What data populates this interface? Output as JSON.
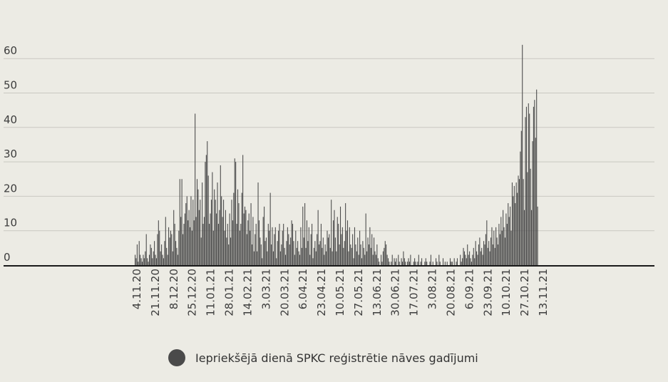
{
  "chart_data": {
    "type": "bar",
    "title": "",
    "xlabel": "",
    "ylabel": "",
    "ylim": [
      0,
      65
    ],
    "yticks": [
      0,
      10,
      20,
      30,
      40,
      50,
      60
    ],
    "grid": true,
    "legend_position": "bottom-center",
    "x_start_label": "4.11.20",
    "x_tick_labels": [
      "4.11.20",
      "21.11.20",
      "8.12.20",
      "25.12.20",
      "11.01.21",
      "28.01.21",
      "14.02.21",
      "3.03.21",
      "20.03.21",
      "6.04.21",
      "23.04.21",
      "10.05.21",
      "27.05.21",
      "13.06.21",
      "30.06.21",
      "17.07.21",
      "3.08.21",
      "20.08.21",
      "6.09.21",
      "23.09.21",
      "10.10.21",
      "27.10.21",
      "13.11.21"
    ],
    "series": [
      {
        "name": "Iepriekšējā dienā SPKC reģistrētie nāves gadījumi",
        "color": "#4a4a4a",
        "values": [
          3,
          2,
          6,
          1,
          7,
          3,
          2,
          1,
          3,
          2,
          4,
          9,
          2,
          1,
          3,
          6,
          5,
          2,
          4,
          7,
          3,
          2,
          9,
          13,
          10,
          4,
          6,
          3,
          2,
          7,
          14,
          5,
          3,
          11,
          8,
          10,
          9,
          4,
          16,
          12,
          7,
          5,
          3,
          10,
          25,
          14,
          25,
          9,
          12,
          15,
          18,
          20,
          13,
          16,
          11,
          20,
          10,
          19,
          13,
          44,
          14,
          25,
          22,
          16,
          19,
          8,
          24,
          12,
          14,
          30,
          32,
          36,
          26,
          12,
          15,
          19,
          27,
          10,
          22,
          19,
          15,
          24,
          12,
          16,
          29,
          20,
          14,
          19,
          10,
          16,
          8,
          12,
          6,
          15,
          8,
          19,
          13,
          21,
          31,
          30,
          12,
          22,
          18,
          10,
          12,
          21,
          32,
          15,
          17,
          16,
          9,
          13,
          15,
          10,
          18,
          6,
          14,
          4,
          9,
          12,
          4,
          24,
          13,
          8,
          6,
          2,
          14,
          17,
          7,
          8,
          4,
          12,
          10,
          21,
          6,
          11,
          4,
          9,
          11,
          2,
          7,
          10,
          12,
          4,
          6,
          10,
          12,
          5,
          3,
          7,
          11,
          9,
          6,
          8,
          13,
          12,
          7,
          3,
          10,
          5,
          7,
          4,
          3,
          11,
          5,
          17,
          8,
          18,
          5,
          13,
          7,
          11,
          3,
          9,
          12,
          2,
          5,
          7,
          4,
          9,
          16,
          6,
          7,
          12,
          5,
          8,
          3,
          6,
          4,
          10,
          8,
          9,
          5,
          19,
          4,
          13,
          16,
          8,
          4,
          14,
          12,
          6,
          17,
          9,
          11,
          5,
          7,
          18,
          10,
          13,
          4,
          11,
          6,
          5,
          9,
          2,
          11,
          6,
          4,
          8,
          3,
          10,
          6,
          2,
          7,
          5,
          3,
          15,
          4,
          8,
          6,
          11,
          5,
          9,
          3,
          8,
          4,
          3,
          6,
          2,
          1,
          0,
          3,
          1,
          4,
          5,
          7,
          6,
          3,
          2,
          1,
          0,
          1,
          3,
          0,
          2,
          1,
          2,
          0,
          3,
          1,
          0,
          2,
          1,
          4,
          2,
          1,
          0,
          1,
          2,
          1,
          3,
          0,
          0,
          1,
          2,
          1,
          0,
          1,
          3,
          0,
          1,
          2,
          0,
          0,
          1,
          2,
          1,
          0,
          0,
          1,
          3,
          0,
          1,
          0,
          0,
          2,
          1,
          0,
          3,
          1,
          0,
          0,
          2,
          0,
          1,
          0,
          1,
          0,
          0,
          2,
          1,
          1,
          0,
          2,
          0,
          1,
          2,
          0,
          0,
          3,
          1,
          2,
          5,
          4,
          3,
          2,
          6,
          3,
          4,
          2,
          1,
          3,
          5,
          2,
          7,
          4,
          3,
          6,
          8,
          4,
          5,
          3,
          7,
          6,
          9,
          13,
          5,
          7,
          4,
          8,
          11,
          6,
          10,
          5,
          11,
          8,
          6,
          12,
          9,
          14,
          10,
          16,
          11,
          8,
          15,
          12,
          18,
          14,
          17,
          10,
          24,
          20,
          23,
          18,
          24,
          21,
          26,
          25,
          33,
          39,
          64,
          25,
          16,
          43,
          46,
          27,
          47,
          44,
          28,
          16,
          36,
          46,
          48,
          37,
          51,
          17
        ]
      }
    ]
  }
}
